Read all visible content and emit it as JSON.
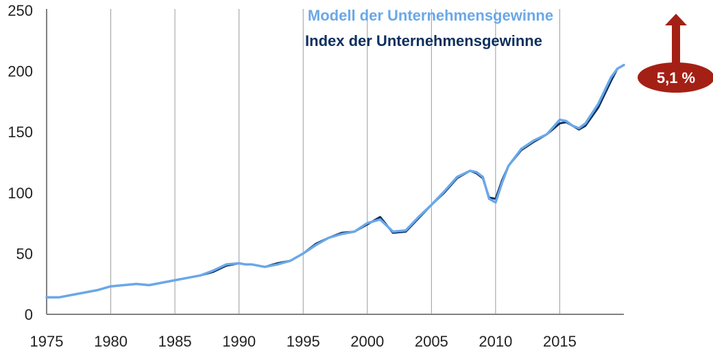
{
  "chart_data": {
    "type": "line",
    "xlim": [
      1975,
      2020
    ],
    "ylim": [
      0,
      250
    ],
    "x_ticks": [
      "1975",
      "1980",
      "1985",
      "1990",
      "1995",
      "2000",
      "2005",
      "2010",
      "2015"
    ],
    "y_ticks": [
      "0",
      "50",
      "100",
      "150",
      "200",
      "250"
    ],
    "grid": "vertical",
    "legend_position": "top-center",
    "series": [
      {
        "name": "Index der Unternehmensgewinne",
        "color": "#0d2f5e",
        "points": [
          [
            1975.0,
            14
          ],
          [
            1976.0,
            14
          ],
          [
            1977.0,
            16
          ],
          [
            1978.0,
            18
          ],
          [
            1979.0,
            20
          ],
          [
            1980.0,
            23
          ],
          [
            1981.0,
            24
          ],
          [
            1982.0,
            25
          ],
          [
            1983.0,
            24
          ],
          [
            1984.0,
            26
          ],
          [
            1985.0,
            28
          ],
          [
            1986.0,
            30
          ],
          [
            1987.0,
            32
          ],
          [
            1988.0,
            35
          ],
          [
            1989.0,
            40
          ],
          [
            1990.0,
            42
          ],
          [
            1990.5,
            41
          ],
          [
            1991.0,
            41
          ],
          [
            1992.0,
            39
          ],
          [
            1993.0,
            42
          ],
          [
            1994.0,
            44
          ],
          [
            1995.0,
            50
          ],
          [
            1996.0,
            58
          ],
          [
            1997.0,
            63
          ],
          [
            1998.0,
            67
          ],
          [
            1999.0,
            68
          ],
          [
            2000.0,
            74
          ],
          [
            2001.0,
            80
          ],
          [
            2002.0,
            67
          ],
          [
            2003.0,
            68
          ],
          [
            2004.0,
            79
          ],
          [
            2005.0,
            90
          ],
          [
            2006.0,
            100
          ],
          [
            2007.0,
            112
          ],
          [
            2008.0,
            118
          ],
          [
            2008.5,
            116
          ],
          [
            2009.0,
            112
          ],
          [
            2009.5,
            96
          ],
          [
            2010.0,
            95
          ],
          [
            2010.5,
            110
          ],
          [
            2011.0,
            122
          ],
          [
            2012.0,
            135
          ],
          [
            2013.0,
            142
          ],
          [
            2014.0,
            148
          ],
          [
            2015.0,
            157
          ],
          [
            2015.5,
            158
          ],
          [
            2016.0,
            155
          ],
          [
            2016.5,
            152
          ],
          [
            2017.0,
            155
          ],
          [
            2018.0,
            170
          ],
          [
            2019.0,
            192
          ],
          [
            2019.5,
            202
          ],
          [
            2020.0,
            205
          ]
        ]
      },
      {
        "name": "Modell der Unternehmensgewinne",
        "color": "#6aa8e8",
        "points": [
          [
            1975.0,
            14
          ],
          [
            1976.0,
            14
          ],
          [
            1977.0,
            16
          ],
          [
            1978.0,
            18
          ],
          [
            1979.0,
            20
          ],
          [
            1980.0,
            23
          ],
          [
            1981.0,
            24
          ],
          [
            1982.0,
            25
          ],
          [
            1983.0,
            24
          ],
          [
            1984.0,
            26
          ],
          [
            1985.0,
            28
          ],
          [
            1986.0,
            30
          ],
          [
            1987.0,
            32
          ],
          [
            1988.0,
            36
          ],
          [
            1989.0,
            41
          ],
          [
            1990.0,
            42
          ],
          [
            1990.5,
            41
          ],
          [
            1991.0,
            41
          ],
          [
            1992.0,
            39
          ],
          [
            1993.0,
            41
          ],
          [
            1994.0,
            44
          ],
          [
            1995.0,
            50
          ],
          [
            1996.0,
            57
          ],
          [
            1997.0,
            63
          ],
          [
            1998.0,
            66
          ],
          [
            1999.0,
            68
          ],
          [
            2000.0,
            75
          ],
          [
            2001.0,
            78
          ],
          [
            2002.0,
            68
          ],
          [
            2003.0,
            69
          ],
          [
            2004.0,
            80
          ],
          [
            2005.0,
            90
          ],
          [
            2006.0,
            101
          ],
          [
            2007.0,
            113
          ],
          [
            2008.0,
            118
          ],
          [
            2008.5,
            117
          ],
          [
            2009.0,
            113
          ],
          [
            2009.5,
            95
          ],
          [
            2010.0,
            92
          ],
          [
            2010.5,
            108
          ],
          [
            2011.0,
            122
          ],
          [
            2012.0,
            136
          ],
          [
            2013.0,
            143
          ],
          [
            2014.0,
            148
          ],
          [
            2015.0,
            160
          ],
          [
            2015.5,
            159
          ],
          [
            2016.0,
            155
          ],
          [
            2016.5,
            153
          ],
          [
            2017.0,
            157
          ],
          [
            2018.0,
            173
          ],
          [
            2019.0,
            195
          ],
          [
            2019.5,
            202
          ],
          [
            2020.0,
            205
          ]
        ]
      }
    ],
    "badge": {
      "label": "5,1 %",
      "color": "#a52014"
    }
  }
}
